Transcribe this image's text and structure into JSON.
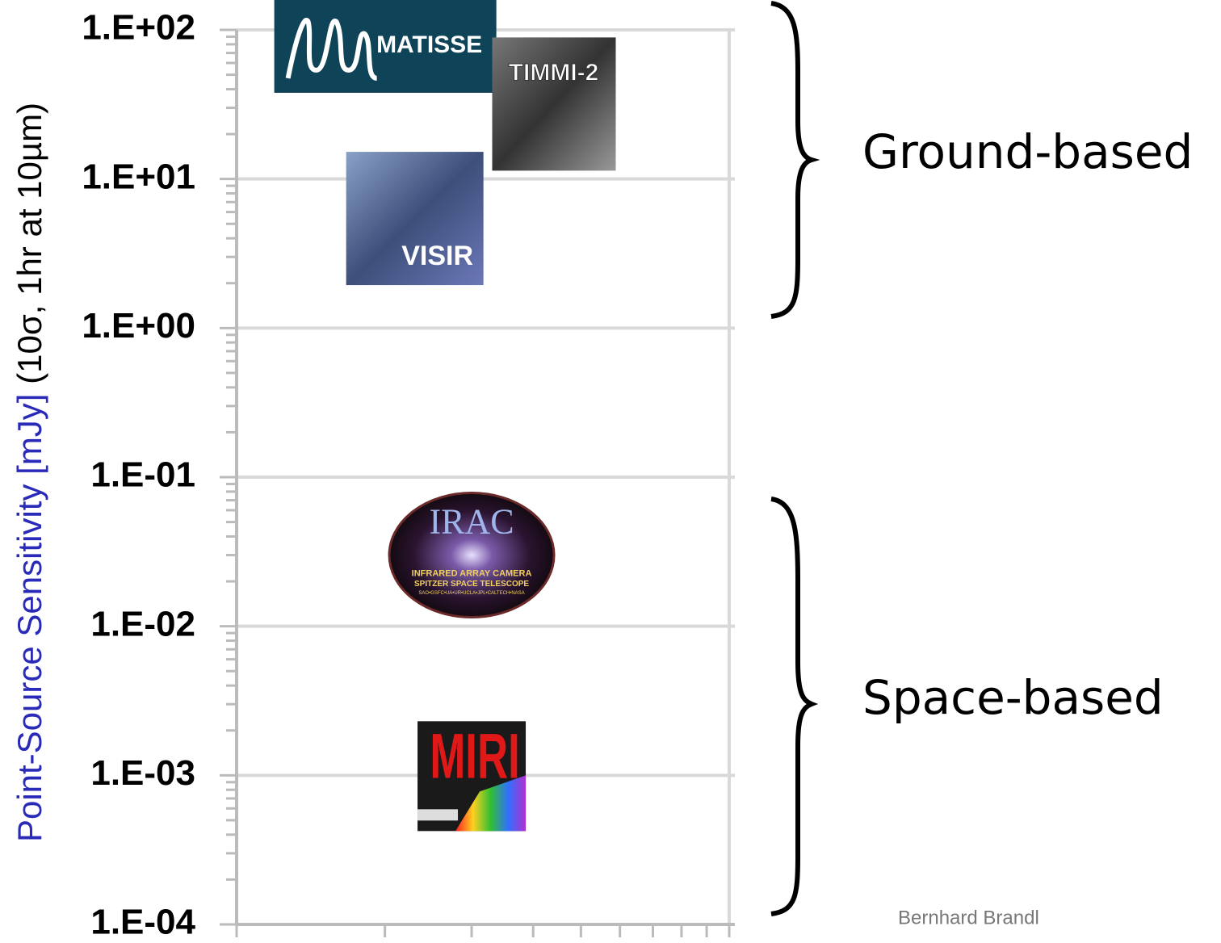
{
  "chart_data": {
    "type": "scatter",
    "ylabel_main": "Point-Source Sensitivity [mJy]",
    "ylabel_note": "(10σ, 1hr at 10µm)",
    "ylabel_main_color": "#2a2ab8",
    "yscale": "log",
    "ylim": [
      0.0001,
      100
    ],
    "yticks": [
      {
        "value": 100,
        "label": "1.E+02"
      },
      {
        "value": 10,
        "label": "1.E+01"
      },
      {
        "value": 1,
        "label": "1.E+00"
      },
      {
        "value": 0.1,
        "label": "1.E-01"
      },
      {
        "value": 0.01,
        "label": "1.E-02"
      },
      {
        "value": 0.001,
        "label": "1.E-03"
      },
      {
        "value": 0.0001,
        "label": "1.E-04"
      }
    ],
    "xscale": "log",
    "xlim": [
      1,
      10
    ],
    "xticks": [
      1,
      2,
      3,
      4,
      5,
      6,
      7,
      8,
      9,
      10
    ],
    "xtick_labels_shown": false,
    "minor_ticks": true,
    "grid": true,
    "points": [
      {
        "name": "MATISSE",
        "x": 2,
        "y": 78
      },
      {
        "name": "TIMMI-2",
        "x": 4.4,
        "y": 32
      },
      {
        "name": "VISIR",
        "x": 2.3,
        "y": 5.4
      },
      {
        "name": "IRAC",
        "x": 3,
        "y": 0.03,
        "subtitle": "INFRARED ARRAY CAMERA",
        "subtitle2": "SPITZER SPACE TELESCOPE",
        "credits": "SAO•GSFC•UA•UR•UCLA•JPL•CALTECH•NASA"
      },
      {
        "name": "MIRI",
        "x": 3,
        "y": 0.001
      }
    ],
    "annotations": [
      "Ground-based",
      "Space-based"
    ],
    "author": "Bernhard Brandl"
  }
}
